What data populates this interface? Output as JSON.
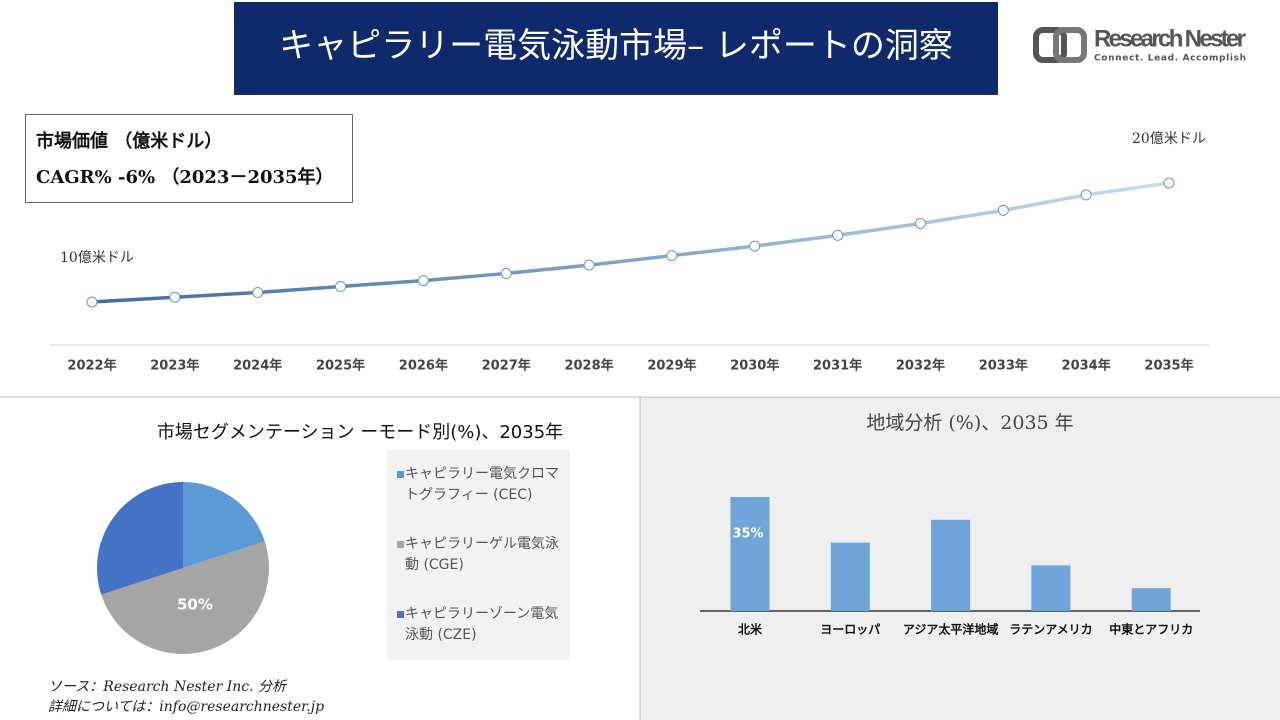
{
  "header": {
    "title": "キャピラリー電気泳動市場– レポートの洞察",
    "logo_name": "Research Nester",
    "logo_tagline": "Connect. Lead. Accomplish"
  },
  "chart_data": [
    {
      "type": "line",
      "title": "市場価値 （億米ドル）",
      "subtitle": "CAGR% -6% （2023－2035年）",
      "categories": [
        "2022年",
        "2023年",
        "2024年",
        "2025年",
        "2026年",
        "2027年",
        "2028年",
        "2029年",
        "2030年",
        "2031年",
        "2032年",
        "2033年",
        "2034年",
        "2035年"
      ],
      "values": [
        10,
        10.4,
        10.8,
        11.3,
        11.8,
        12.4,
        13.1,
        13.9,
        14.7,
        15.6,
        16.6,
        17.7,
        19,
        20
      ],
      "value_labels": [
        "10億米ドル",
        null,
        null,
        null,
        null,
        null,
        null,
        null,
        null,
        null,
        null,
        null,
        null,
        "20億米ドル"
      ],
      "gradient": [
        "#3e6c9b",
        "#c9dcef"
      ]
    },
    {
      "type": "pie",
      "title": "市場セグメンテーション ーモード別(%)、2035年",
      "categories": [
        "キャピラリー電気クロマトグラフィー (CEC)",
        "キャピラリーゲル電気泳動 (CGE)",
        "キャピラリーゾーン電気泳動 (CZE)"
      ],
      "values": [
        20,
        50,
        30
      ],
      "value_labels": [
        null,
        "50%",
        null
      ],
      "colors": [
        "#5b9bd5",
        "#a5a5a5",
        "#4472c4"
      ]
    },
    {
      "type": "bar",
      "title": "地域分析 (%)、2035 年",
      "categories": [
        "北米",
        "ヨーロッパ",
        "アジア太平洋地域",
        "ラテンアメリカ",
        "中東とアフリカ"
      ],
      "values": [
        35,
        21,
        28,
        14,
        7
      ],
      "value_labels": [
        "35%",
        null,
        null,
        null,
        null
      ],
      "color": "#6fa5da"
    }
  ],
  "source": {
    "line1": "ソース：Research Nester Inc. 分析",
    "line2": "詳細については：info@researchnester.jp"
  }
}
